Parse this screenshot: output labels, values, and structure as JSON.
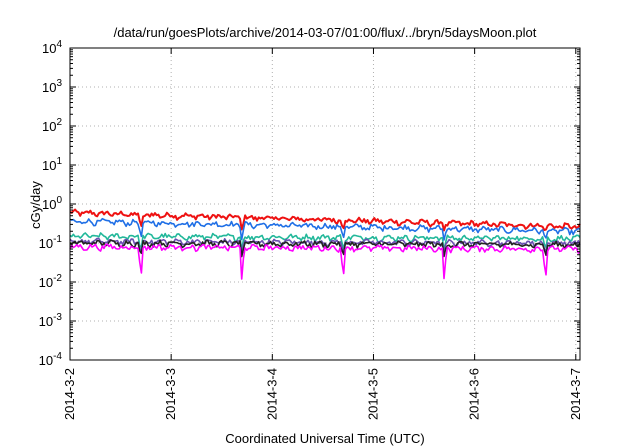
{
  "chart_data": {
    "type": "line",
    "title": "/data/run/goesPlots/archive/2014-03-07/01:00/flux/../bryn/5daysMoon.plot",
    "xlabel": "Coordinated Universal Time (UTC)",
    "ylabel": "cGy/day",
    "x_range": [
      "2014-03-02",
      "2014-03-07 01:00"
    ],
    "x_ticks": [
      "2014-3-2",
      "2014-3-3",
      "2014-3-4",
      "2014-3-5",
      "2014-3-6",
      "2014-3-7"
    ],
    "y_scale": "log",
    "ylim": [
      0.0001,
      10000
    ],
    "y_ticks": [
      {
        "base": "10",
        "exp": "-4"
      },
      {
        "base": "10",
        "exp": "-3"
      },
      {
        "base": "10",
        "exp": "-2"
      },
      {
        "base": "10",
        "exp": "-1"
      },
      {
        "base": "10",
        "exp": "0"
      },
      {
        "base": "10",
        "exp": "1"
      },
      {
        "base": "10",
        "exp": "2"
      },
      {
        "base": "10",
        "exp": "3"
      },
      {
        "base": "10",
        "exp": "4"
      }
    ],
    "grid": true,
    "legend": "none",
    "dip_days": [
      0.7,
      1.7,
      2.7,
      3.7,
      4.7
    ],
    "series": [
      {
        "color": "#ee1111",
        "start": 0.6,
        "end": 0.26,
        "dip_min": 0.2
      },
      {
        "color": "#1f6fe6",
        "start": 0.36,
        "end": 0.2,
        "dip_min": 0.11
      },
      {
        "color": "#22b89a",
        "start": 0.15,
        "end": 0.13,
        "dip_min": 0.06
      },
      {
        "color": "#6a4fb0",
        "start": 0.11,
        "end": 0.1,
        "dip_min": 0.05
      },
      {
        "color": "#222222",
        "start": 0.1,
        "end": 0.09,
        "dip_min": 0.04
      },
      {
        "color": "#ff00ff",
        "start": 0.08,
        "end": 0.07,
        "dip_min": 0.009
      }
    ]
  }
}
